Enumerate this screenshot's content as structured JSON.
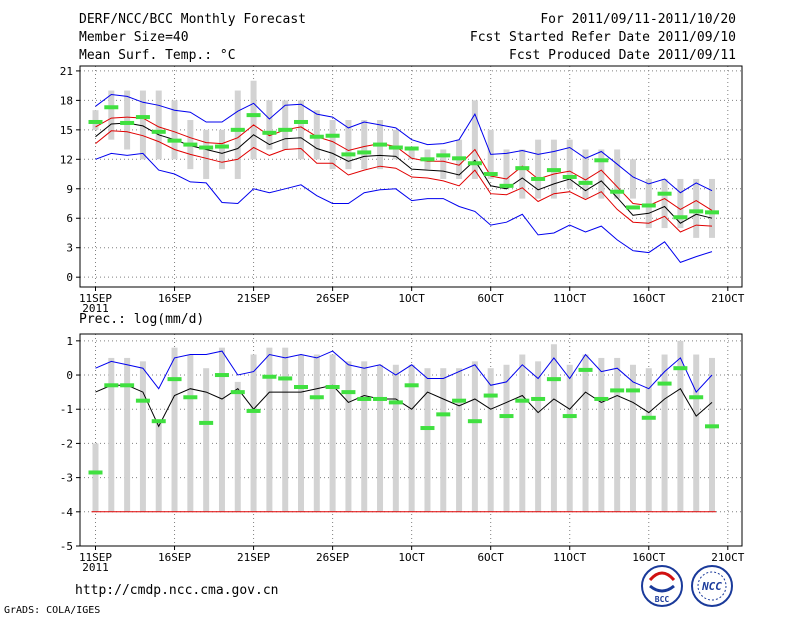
{
  "header": {
    "title": "DERF/NCC/BCC Monthly Forecast",
    "member_size": "Member Size=40",
    "variable": "Mean Surf. Temp.: °C",
    "period": "For 2011/09/11-2011/10/20",
    "fcst_started": "Fcst Started Refer Date 2011/09/10",
    "fcst_produced": "Fcst Produced Date 2011/09/11"
  },
  "footer": {
    "url": "http://cmdp.ncc.cma.gov.cn",
    "grads": "GrADS: COLA/IGES",
    "logo_bcc": "BCC",
    "logo_ncc": "NCC"
  },
  "colors": {
    "bar": "#d3d3d3",
    "mean": "#40e040",
    "envelope": "#0000ee",
    "spread": "#e00000",
    "median": "#000000",
    "base": "#e00000"
  },
  "chart_data": [
    {
      "type": "bar",
      "title": "Mean Surf. Temp.: °C",
      "xlabel": "",
      "ylabel": "°C",
      "ylim": [
        -1,
        21.5
      ],
      "yticks": [
        0,
        3,
        6,
        9,
        12,
        15,
        18,
        21
      ],
      "x_tick_labels": [
        {
          "day": 1,
          "label": "11SEP",
          "sub": "2011"
        },
        {
          "day": 6,
          "label": "16SEP"
        },
        {
          "day": 11,
          "label": "21SEP"
        },
        {
          "day": 16,
          "label": "26SEP"
        },
        {
          "day": 21,
          "label": "1OCT"
        },
        {
          "day": 26,
          "label": "6OCT"
        },
        {
          "day": 31,
          "label": "11OCT"
        },
        {
          "day": 36,
          "label": "16OCT"
        },
        {
          "day": 41,
          "label": "21OCT"
        }
      ],
      "grid": true,
      "bars_low": [
        15,
        14,
        13,
        12,
        12,
        12,
        11,
        10,
        11,
        10,
        12,
        13,
        13,
        12,
        12,
        11,
        11,
        11,
        11,
        12,
        12,
        11,
        10,
        10,
        10,
        10,
        9,
        8,
        8,
        8,
        9,
        8,
        8,
        8,
        8,
        5,
        5,
        5,
        4,
        4
      ],
      "bars_high": [
        17,
        19,
        19,
        19,
        19,
        18,
        16,
        15,
        15,
        19,
        20,
        18,
        18,
        18,
        17,
        16,
        16,
        16,
        16,
        15,
        13,
        13,
        13,
        14,
        18,
        15,
        13,
        13,
        14,
        14,
        14,
        13,
        13,
        13,
        12,
        10,
        10,
        10,
        10,
        10
      ],
      "series": [
        {
          "name": "ensemble-mean",
          "style": "marker",
          "values": [
            15.8,
            17.3,
            15.7,
            16.3,
            14.8,
            13.9,
            13.5,
            13.2,
            13.3,
            15.0,
            16.5,
            14.7,
            15.0,
            15.8,
            14.3,
            14.4,
            12.5,
            12.7,
            13.5,
            13.2,
            13.1,
            12.0,
            12.4,
            12.1,
            11.6,
            10.5,
            9.3,
            11.1,
            10.0,
            10.9,
            10.2,
            9.6,
            11.9,
            8.7,
            7.1,
            7.3,
            8.5,
            6.1,
            6.7,
            6.6
          ]
        },
        {
          "name": "envelope-upper",
          "style": "line",
          "color": "#0000ee",
          "values": [
            17.4,
            18.6,
            18.4,
            17.8,
            17.5,
            17.0,
            16.8,
            15.8,
            15.8,
            16.9,
            17.7,
            16.1,
            17.5,
            17.6,
            16.6,
            16.3,
            15.2,
            15.8,
            15.5,
            15.2,
            14.0,
            13.5,
            13.6,
            14.0,
            16.6,
            12.5,
            12.6,
            12.9,
            12.5,
            12.8,
            13.2,
            12.1,
            12.8,
            11.5,
            10.2,
            9.5,
            10.0,
            8.6,
            9.6,
            8.8
          ]
        },
        {
          "name": "spread-upper",
          "style": "line",
          "color": "#e00000",
          "values": [
            15.3,
            16.2,
            16.3,
            16.2,
            15.3,
            14.8,
            14.2,
            13.7,
            13.6,
            14.2,
            15.5,
            14.4,
            15.0,
            15.3,
            14.3,
            13.8,
            12.9,
            13.3,
            13.6,
            13.3,
            12.1,
            11.8,
            11.8,
            11.4,
            13.0,
            10.3,
            10.0,
            11.3,
            10.0,
            10.5,
            10.8,
            9.9,
            10.9,
            9.2,
            7.5,
            7.3,
            8.0,
            6.9,
            7.8,
            6.8
          ]
        },
        {
          "name": "median",
          "style": "line",
          "color": "#000000",
          "values": [
            14.3,
            15.6,
            15.7,
            15.4,
            14.5,
            14.0,
            13.4,
            13.0,
            12.6,
            13.1,
            14.5,
            13.5,
            14.1,
            14.2,
            13.1,
            12.6,
            11.8,
            12.3,
            12.4,
            12.3,
            11.0,
            10.9,
            10.8,
            10.4,
            11.9,
            9.3,
            9.0,
            10.1,
            8.9,
            9.5,
            10.0,
            8.8,
            9.8,
            8.1,
            6.3,
            6.5,
            7.2,
            5.5,
            6.4,
            6.0
          ]
        },
        {
          "name": "spread-lower",
          "style": "line",
          "color": "#e00000",
          "values": [
            13.6,
            14.9,
            14.8,
            14.4,
            13.8,
            13.0,
            12.5,
            12.1,
            11.7,
            12.0,
            13.2,
            12.4,
            13.0,
            13.1,
            11.6,
            11.6,
            10.4,
            10.9,
            11.3,
            11.1,
            10.2,
            10.1,
            9.8,
            9.3,
            10.9,
            8.5,
            8.4,
            9.1,
            7.7,
            8.5,
            8.7,
            7.9,
            8.7,
            6.9,
            5.6,
            5.5,
            6.2,
            4.6,
            5.3,
            5.2
          ]
        },
        {
          "name": "envelope-lower",
          "style": "line",
          "color": "#0000ee",
          "values": [
            12.0,
            12.6,
            12.4,
            12.6,
            10.9,
            10.5,
            9.7,
            9.6,
            7.6,
            7.5,
            9.0,
            8.6,
            9.0,
            9.4,
            8.3,
            7.5,
            7.5,
            8.6,
            8.9,
            9.0,
            7.8,
            8.0,
            8.0,
            7.2,
            6.7,
            5.3,
            5.6,
            6.4,
            4.3,
            4.5,
            5.3,
            4.6,
            5.2,
            3.8,
            2.7,
            2.5,
            3.6,
            1.5,
            2.1,
            2.6
          ]
        }
      ]
    },
    {
      "type": "bar",
      "title": "Prec.: log(mm/d)",
      "xlabel": "",
      "ylabel": "log(mm/d)",
      "ylim": [
        -5,
        1.2
      ],
      "yticks": [
        -5,
        -4,
        -3,
        -2,
        -1,
        0,
        1
      ],
      "x_tick_labels": [
        {
          "day": 1,
          "label": "11SEP",
          "sub": "2011"
        },
        {
          "day": 6,
          "label": "16SEP"
        },
        {
          "day": 11,
          "label": "21SEP"
        },
        {
          "day": 16,
          "label": "26SEP"
        },
        {
          "day": 21,
          "label": "1OCT"
        },
        {
          "day": 26,
          "label": "6OCT"
        },
        {
          "day": 31,
          "label": "11OCT"
        },
        {
          "day": 36,
          "label": "16OCT"
        },
        {
          "day": 41,
          "label": "21OCT"
        }
      ],
      "grid": true,
      "base_value": -4,
      "bars_low": [
        -4,
        -4,
        -4,
        -4,
        -4,
        -4,
        -4,
        -4,
        -4,
        -4,
        -4,
        -4,
        -4,
        -4,
        -4,
        -4,
        -4,
        -4,
        -4,
        -4,
        -4,
        -4,
        -4,
        -4,
        -4,
        -4,
        -4,
        -4,
        -4,
        -4,
        -4,
        -4,
        -4,
        -4,
        -4,
        -4,
        -4,
        -4,
        -4,
        -4
      ],
      "bars_high": [
        -2.0,
        0.5,
        0.5,
        0.4,
        -1.4,
        0.8,
        0.6,
        0.2,
        0.8,
        -0.2,
        0.6,
        0.8,
        0.8,
        0.6,
        0.6,
        0.6,
        0.4,
        0.4,
        0.3,
        0.3,
        0.3,
        0.2,
        0.2,
        0.2,
        0.4,
        0.2,
        0.3,
        0.6,
        0.4,
        0.9,
        0.3,
        0.6,
        0.5,
        0.5,
        0.3,
        0.2,
        0.6,
        1.0,
        0.6,
        0.5
      ],
      "series": [
        {
          "name": "ensemble-mean",
          "style": "marker",
          "values": [
            -2.85,
            -0.3,
            -0.3,
            -0.75,
            -1.35,
            -0.12,
            -0.65,
            -1.4,
            0.0,
            -0.5,
            -1.05,
            -0.05,
            -0.1,
            -0.35,
            -0.65,
            -0.35,
            -0.5,
            -0.7,
            -0.7,
            -0.8,
            -0.3,
            -1.55,
            -1.15,
            -0.75,
            -1.35,
            -0.6,
            -1.2,
            -0.75,
            -0.7,
            -0.12,
            -1.2,
            0.15,
            -0.7,
            -0.45,
            -0.45,
            -1.25,
            -0.25,
            0.2,
            -0.65,
            -1.5
          ]
        },
        {
          "name": "envelope-upper",
          "style": "line",
          "color": "#0000ee",
          "values": [
            0.2,
            0.4,
            0.3,
            0.2,
            -0.4,
            0.5,
            0.6,
            0.6,
            0.7,
            0.0,
            0.1,
            0.6,
            0.5,
            0.6,
            0.5,
            0.7,
            0.3,
            0.2,
            0.3,
            0.0,
            0.3,
            -0.1,
            -0.1,
            0.1,
            0.3,
            -0.3,
            -0.2,
            0.3,
            -0.1,
            0.5,
            -0.1,
            0.6,
            0.1,
            0.2,
            -0.2,
            -0.4,
            0.1,
            0.5,
            -0.5,
            0.0
          ]
        },
        {
          "name": "median",
          "style": "line",
          "color": "#000000",
          "values": [
            -0.5,
            -0.3,
            -0.3,
            -0.5,
            -1.5,
            -0.6,
            -0.4,
            -0.5,
            -0.7,
            -0.4,
            -1.0,
            -0.5,
            -0.5,
            -0.5,
            -0.4,
            -0.3,
            -0.8,
            -0.6,
            -0.7,
            -0.7,
            -1.0,
            -0.5,
            -0.7,
            -0.9,
            -0.7,
            -1.0,
            -0.8,
            -0.6,
            -1.1,
            -0.7,
            -1.0,
            -0.5,
            -0.8,
            -0.6,
            -0.8,
            -1.1,
            -0.7,
            -0.4,
            -1.2,
            -0.8
          ]
        }
      ]
    }
  ]
}
